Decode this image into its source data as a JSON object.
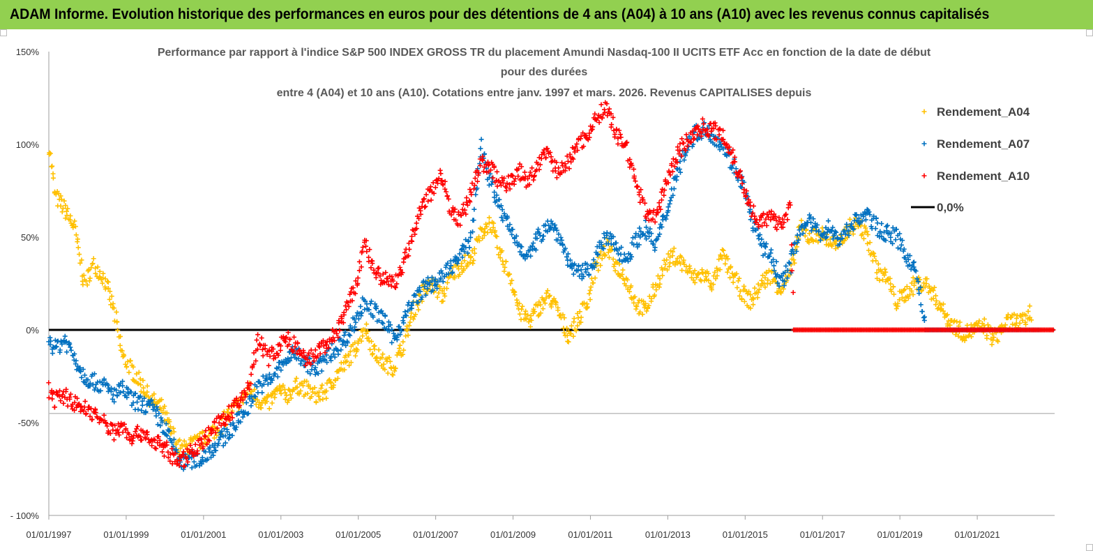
{
  "banner": {
    "title": "ADAM Informe. Evolution historique des performances en euros pour des détentions de 4 ans (A04) à 10 ans (A10) avec les revenus connus capitalisés"
  },
  "colors": {
    "banner": "#92d050",
    "A04": "#ffc000",
    "A07": "#0070c0",
    "A10": "#ff0000",
    "zero": "#000000"
  },
  "chart_data": {
    "type": "scatter",
    "title_lines": [
      "Performance par rapport à l'indice S&P 500 INDEX GROSS TR  du placement Amundi Nasdaq-100 II UCITS ETF Acc en fonction de la date de début",
      "pour des durées",
      "entre 4 (A04) et 10 ans (A10). Cotations entre janv. 1997 et mars. 2026. Revenus CAPITALISES depuis"
    ],
    "xlabel": "",
    "ylabel": "",
    "xlim": [
      "01/01/1997",
      "01/01/2023"
    ],
    "ylim": [
      -100,
      150
    ],
    "x_ticks": [
      "01/01/1997",
      "01/01/1999",
      "01/01/2001",
      "01/01/2003",
      "01/01/2005",
      "01/01/2007",
      "01/01/2009",
      "01/01/2011",
      "01/01/2013",
      "01/01/2015",
      "01/01/2017",
      "01/01/2019",
      "01/01/2021"
    ],
    "y_ticks": [
      "150%",
      "100%",
      "50%",
      "0%",
      "-50%",
      "- 100%"
    ],
    "y_tick_values": [
      150,
      100,
      50,
      0,
      -50,
      -100
    ],
    "legend_position": "right",
    "series": [
      {
        "name": "Rendement_A04",
        "marker": "+",
        "points": [
          [
            "1997-01",
            100
          ],
          [
            "1997-03",
            72
          ],
          [
            "1997-06",
            65
          ],
          [
            "1997-09",
            55
          ],
          [
            "1997-12",
            25
          ],
          [
            "1998-03",
            35
          ],
          [
            "1998-06",
            28
          ],
          [
            "1998-09",
            12
          ],
          [
            "1998-12",
            -15
          ],
          [
            "1999-03",
            -22
          ],
          [
            "1999-06",
            -30
          ],
          [
            "1999-09",
            -38
          ],
          [
            "1999-12",
            -42
          ],
          [
            "2000-03",
            -55
          ],
          [
            "2000-06",
            -65
          ],
          [
            "2000-09",
            -62
          ],
          [
            "2000-12",
            -60
          ],
          [
            "2001-03",
            -56
          ],
          [
            "2001-06",
            -52
          ],
          [
            "2001-09",
            -45
          ],
          [
            "2001-12",
            -40
          ],
          [
            "2002-03",
            -32
          ],
          [
            "2002-06",
            -38
          ],
          [
            "2002-09",
            -40
          ],
          [
            "2002-12",
            -33
          ],
          [
            "2003-03",
            -35
          ],
          [
            "2003-06",
            -30
          ],
          [
            "2003-09",
            -32
          ],
          [
            "2003-12",
            -36
          ],
          [
            "2004-03",
            -33
          ],
          [
            "2004-06",
            -25
          ],
          [
            "2004-09",
            -18
          ],
          [
            "2004-12",
            -10
          ],
          [
            "2005-03",
            2
          ],
          [
            "2005-06",
            -12
          ],
          [
            "2005-09",
            -18
          ],
          [
            "2005-12",
            -20
          ],
          [
            "2006-03",
            -8
          ],
          [
            "2006-06",
            10
          ],
          [
            "2006-09",
            20
          ],
          [
            "2006-12",
            25
          ],
          [
            "2007-03",
            18
          ],
          [
            "2007-06",
            30
          ],
          [
            "2007-09",
            35
          ],
          [
            "2007-12",
            38
          ],
          [
            "2008-03",
            52
          ],
          [
            "2008-06",
            58
          ],
          [
            "2008-09",
            40
          ],
          [
            "2008-12",
            30
          ],
          [
            "2009-03",
            10
          ],
          [
            "2009-06",
            5
          ],
          [
            "2009-09",
            12
          ],
          [
            "2009-12",
            18
          ],
          [
            "2010-03",
            10
          ],
          [
            "2010-06",
            -3
          ],
          [
            "2010-09",
            5
          ],
          [
            "2010-12",
            15
          ],
          [
            "2011-03",
            35
          ],
          [
            "2011-06",
            45
          ],
          [
            "2011-09",
            35
          ],
          [
            "2011-12",
            28
          ],
          [
            "2012-03",
            15
          ],
          [
            "2012-06",
            10
          ],
          [
            "2012-09",
            22
          ],
          [
            "2012-12",
            35
          ],
          [
            "2013-03",
            40
          ],
          [
            "2013-06",
            35
          ],
          [
            "2013-09",
            28
          ],
          [
            "2013-12",
            30
          ],
          [
            "2014-03",
            25
          ],
          [
            "2014-06",
            40
          ],
          [
            "2014-09",
            30
          ],
          [
            "2014-12",
            20
          ],
          [
            "2015-03",
            15
          ],
          [
            "2015-06",
            25
          ],
          [
            "2015-09",
            30
          ],
          [
            "2015-12",
            22
          ],
          [
            "2016-03",
            30
          ],
          [
            "2016-06",
            55
          ],
          [
            "2016-09",
            50
          ],
          [
            "2016-12",
            52
          ],
          [
            "2017-03",
            48
          ],
          [
            "2017-06",
            45
          ],
          [
            "2017-09",
            55
          ],
          [
            "2017-12",
            57
          ],
          [
            "2018-03",
            50
          ],
          [
            "2018-06",
            32
          ],
          [
            "2018-09",
            28
          ],
          [
            "2018-12",
            15
          ],
          [
            "2019-03",
            20
          ],
          [
            "2019-06",
            25
          ],
          [
            "2019-09",
            25
          ],
          [
            "2019-12",
            18
          ],
          [
            "2020-03",
            8
          ],
          [
            "2020-06",
            2
          ],
          [
            "2020-09",
            -2
          ],
          [
            "2020-12",
            0
          ],
          [
            "2021-03",
            2
          ],
          [
            "2021-06",
            -5
          ],
          [
            "2021-09",
            2
          ],
          [
            "2021-12",
            5
          ],
          [
            "2022-03",
            4
          ],
          [
            "2022-06",
            10
          ]
        ]
      },
      {
        "name": "Rendement_A07",
        "marker": "+",
        "points": [
          [
            "1997-01",
            -5
          ],
          [
            "1997-03",
            -10
          ],
          [
            "1997-06",
            -5
          ],
          [
            "1997-09",
            -15
          ],
          [
            "1997-12",
            -25
          ],
          [
            "1998-03",
            -28
          ],
          [
            "1998-06",
            -30
          ],
          [
            "1998-09",
            -35
          ],
          [
            "1998-12",
            -32
          ],
          [
            "1999-03",
            -38
          ],
          [
            "1999-06",
            -40
          ],
          [
            "1999-09",
            -42
          ],
          [
            "1999-12",
            -50
          ],
          [
            "2000-03",
            -60
          ],
          [
            "2000-06",
            -72
          ],
          [
            "2000-09",
            -70
          ],
          [
            "2000-12",
            -70
          ],
          [
            "2001-03",
            -65
          ],
          [
            "2001-06",
            -60
          ],
          [
            "2001-09",
            -55
          ],
          [
            "2001-12",
            -48
          ],
          [
            "2002-03",
            -40
          ],
          [
            "2002-06",
            -30
          ],
          [
            "2002-09",
            -28
          ],
          [
            "2002-12",
            -22
          ],
          [
            "2003-03",
            -15
          ],
          [
            "2003-06",
            -12
          ],
          [
            "2003-09",
            -18
          ],
          [
            "2003-12",
            -22
          ],
          [
            "2004-03",
            -15
          ],
          [
            "2004-06",
            -10
          ],
          [
            "2004-09",
            -5
          ],
          [
            "2004-12",
            5
          ],
          [
            "2005-03",
            15
          ],
          [
            "2005-06",
            10
          ],
          [
            "2005-09",
            5
          ],
          [
            "2005-12",
            -5
          ],
          [
            "2006-03",
            5
          ],
          [
            "2006-06",
            15
          ],
          [
            "2006-09",
            22
          ],
          [
            "2006-12",
            25
          ],
          [
            "2007-03",
            28
          ],
          [
            "2007-06",
            35
          ],
          [
            "2007-09",
            40
          ],
          [
            "2007-12",
            50
          ],
          [
            "2008-03",
            100
          ],
          [
            "2008-06",
            80
          ],
          [
            "2008-09",
            65
          ],
          [
            "2008-12",
            55
          ],
          [
            "2009-03",
            45
          ],
          [
            "2009-06",
            40
          ],
          [
            "2009-09",
            50
          ],
          [
            "2009-12",
            58
          ],
          [
            "2010-03",
            52
          ],
          [
            "2010-06",
            38
          ],
          [
            "2010-09",
            30
          ],
          [
            "2010-12",
            32
          ],
          [
            "2011-03",
            40
          ],
          [
            "2011-06",
            50
          ],
          [
            "2011-09",
            45
          ],
          [
            "2011-12",
            38
          ],
          [
            "2012-03",
            48
          ],
          [
            "2012-06",
            55
          ],
          [
            "2012-09",
            45
          ],
          [
            "2012-12",
            60
          ],
          [
            "2013-03",
            80
          ],
          [
            "2013-06",
            95
          ],
          [
            "2013-09",
            105
          ],
          [
            "2013-12",
            108
          ],
          [
            "2014-03",
            105
          ],
          [
            "2014-06",
            100
          ],
          [
            "2014-09",
            90
          ],
          [
            "2014-12",
            80
          ],
          [
            "2015-03",
            60
          ],
          [
            "2015-06",
            45
          ],
          [
            "2015-09",
            40
          ],
          [
            "2015-12",
            25
          ],
          [
            "2016-03",
            35
          ],
          [
            "2016-06",
            55
          ],
          [
            "2016-09",
            58
          ],
          [
            "2016-12",
            52
          ],
          [
            "2017-03",
            55
          ],
          [
            "2017-06",
            48
          ],
          [
            "2017-09",
            55
          ],
          [
            "2017-12",
            60
          ],
          [
            "2018-03",
            62
          ],
          [
            "2018-06",
            55
          ],
          [
            "2018-09",
            52
          ],
          [
            "2018-12",
            50
          ],
          [
            "2019-03",
            40
          ],
          [
            "2019-06",
            32
          ],
          [
            "2019-09",
            0
          ],
          [
            "2022-09",
            0
          ]
        ]
      },
      {
        "name": "Rendement_A10",
        "marker": "+",
        "points": [
          [
            "1997-01",
            -32
          ],
          [
            "1997-03",
            -38
          ],
          [
            "1997-06",
            -35
          ],
          [
            "1997-09",
            -40
          ],
          [
            "1997-12",
            -42
          ],
          [
            "1998-03",
            -45
          ],
          [
            "1998-06",
            -50
          ],
          [
            "1998-09",
            -55
          ],
          [
            "1998-12",
            -52
          ],
          [
            "1999-03",
            -58
          ],
          [
            "1999-06",
            -55
          ],
          [
            "1999-09",
            -60
          ],
          [
            "1999-12",
            -62
          ],
          [
            "2000-03",
            -68
          ],
          [
            "2000-06",
            -72
          ],
          [
            "2000-09",
            -65
          ],
          [
            "2000-12",
            -62
          ],
          [
            "2001-03",
            -55
          ],
          [
            "2001-06",
            -50
          ],
          [
            "2001-09",
            -45
          ],
          [
            "2001-12",
            -40
          ],
          [
            "2002-03",
            -30
          ],
          [
            "2002-06",
            -5
          ],
          [
            "2002-09",
            -15
          ],
          [
            "2002-12",
            -10
          ],
          [
            "2003-03",
            -5
          ],
          [
            "2003-06",
            -10
          ],
          [
            "2003-09",
            -18
          ],
          [
            "2003-12",
            -12
          ],
          [
            "2004-03",
            -8
          ],
          [
            "2004-06",
            -2
          ],
          [
            "2004-09",
            10
          ],
          [
            "2004-12",
            22
          ],
          [
            "2005-03",
            48
          ],
          [
            "2005-06",
            30
          ],
          [
            "2005-09",
            28
          ],
          [
            "2005-12",
            25
          ],
          [
            "2006-03",
            35
          ],
          [
            "2006-06",
            50
          ],
          [
            "2006-09",
            68
          ],
          [
            "2006-12",
            75
          ],
          [
            "2007-03",
            85
          ],
          [
            "2007-06",
            62
          ],
          [
            "2007-09",
            60
          ],
          [
            "2007-12",
            75
          ],
          [
            "2008-03",
            90
          ],
          [
            "2008-06",
            88
          ],
          [
            "2008-09",
            78
          ],
          [
            "2008-12",
            80
          ],
          [
            "2009-03",
            85
          ],
          [
            "2009-06",
            80
          ],
          [
            "2009-09",
            90
          ],
          [
            "2009-12",
            95
          ],
          [
            "2010-03",
            85
          ],
          [
            "2010-06",
            90
          ],
          [
            "2010-09",
            100
          ],
          [
            "2010-12",
            105
          ],
          [
            "2011-03",
            115
          ],
          [
            "2011-06",
            120
          ],
          [
            "2011-09",
            105
          ],
          [
            "2011-12",
            100
          ],
          [
            "2012-03",
            80
          ],
          [
            "2012-06",
            65
          ],
          [
            "2012-09",
            60
          ],
          [
            "2012-12",
            75
          ],
          [
            "2013-03",
            92
          ],
          [
            "2013-06",
            100
          ],
          [
            "2013-09",
            105
          ],
          [
            "2013-12",
            110
          ],
          [
            "2014-03",
            108
          ],
          [
            "2014-06",
            105
          ],
          [
            "2014-09",
            95
          ],
          [
            "2014-12",
            80
          ],
          [
            "2015-03",
            65
          ],
          [
            "2015-06",
            58
          ],
          [
            "2015-09",
            60
          ],
          [
            "2015-12",
            58
          ],
          [
            "2016-03",
            65
          ],
          [
            "2016-04",
            0
          ],
          [
            "2023-01",
            0
          ]
        ]
      }
    ],
    "reference_line": {
      "name": "0,0%",
      "y": 0
    }
  }
}
